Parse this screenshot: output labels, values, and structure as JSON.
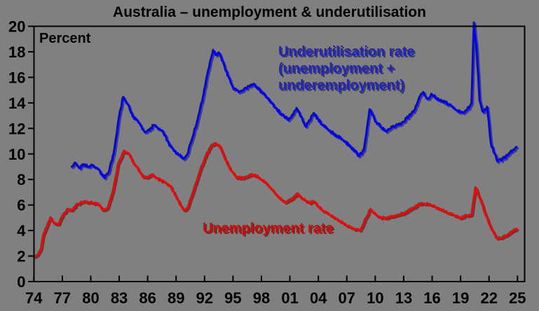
{
  "title": "Australia – unemployment & underutilisation",
  "labels": {
    "percent": "Percent",
    "underutilisation_line1": "Underutilisation rate",
    "underutilisation_line2": "(unemployment +",
    "underutilisation_line3": "underemployment)",
    "unemployment": "Unemployment rate"
  },
  "colors": {
    "background": "#808080",
    "axis": "#000000",
    "unemployment_line": "#FF0000",
    "unemployment_text": "#E60000",
    "underutilisation_line": "#0000FF",
    "underutilisation_text": "#2222CC"
  },
  "chart_data": {
    "type": "line",
    "title": "Australia – unemployment & underutilisation",
    "ylabel": "Percent",
    "xlabel": "",
    "ylim": [
      0,
      20
    ],
    "xlim": [
      1973.4,
      2025.75
    ],
    "grid": false,
    "legend_position": "inline-annotations",
    "y_ticks": [
      0,
      2,
      4,
      6,
      8,
      10,
      12,
      14,
      16,
      18,
      20
    ],
    "x_ticks": [
      {
        "label": "74",
        "year": 1974
      },
      {
        "label": "77",
        "year": 1977
      },
      {
        "label": "80",
        "year": 1980
      },
      {
        "label": "83",
        "year": 1983
      },
      {
        "label": "86",
        "year": 1986
      },
      {
        "label": "89",
        "year": 1989
      },
      {
        "label": "92",
        "year": 1992
      },
      {
        "label": "95",
        "year": 1995
      },
      {
        "label": "98",
        "year": 1998
      },
      {
        "label": "01",
        "year": 2001
      },
      {
        "label": "04",
        "year": 2004
      },
      {
        "label": "07",
        "year": 2007
      },
      {
        "label": "10",
        "year": 2010
      },
      {
        "label": "13",
        "year": 2013
      },
      {
        "label": "16",
        "year": 2016
      },
      {
        "label": "19",
        "year": 2019
      },
      {
        "label": "22",
        "year": 2022
      },
      {
        "label": "25",
        "year": 2025
      }
    ],
    "series": [
      {
        "key": "unemployment",
        "name": "Unemployment rate",
        "color": "#FF0000",
        "label_color": "#E60000",
        "wiggle": 0.07,
        "points": [
          [
            1974.05,
            1.95
          ],
          [
            1974.4,
            2.1
          ],
          [
            1974.7,
            2.5
          ],
          [
            1975.0,
            3.7
          ],
          [
            1975.4,
            4.4
          ],
          [
            1975.75,
            5.05
          ],
          [
            1976.1,
            4.6
          ],
          [
            1976.6,
            4.5
          ],
          [
            1977.1,
            5.3
          ],
          [
            1977.6,
            5.7
          ],
          [
            1978.0,
            5.6
          ],
          [
            1978.6,
            6.1
          ],
          [
            1979.3,
            6.3
          ],
          [
            1980.0,
            6.2
          ],
          [
            1980.8,
            6.1
          ],
          [
            1981.3,
            5.6
          ],
          [
            1981.8,
            5.8
          ],
          [
            1982.3,
            7.0
          ],
          [
            1982.9,
            9.3
          ],
          [
            1983.5,
            10.25
          ],
          [
            1984.0,
            10.0
          ],
          [
            1984.5,
            9.3
          ],
          [
            1985.0,
            8.8
          ],
          [
            1985.5,
            8.2
          ],
          [
            1986.0,
            8.2
          ],
          [
            1986.5,
            8.4
          ],
          [
            1987.0,
            8.1
          ],
          [
            1987.7,
            7.85
          ],
          [
            1988.4,
            7.5
          ],
          [
            1989.1,
            6.45
          ],
          [
            1989.8,
            5.6
          ],
          [
            1990.2,
            5.8
          ],
          [
            1990.9,
            7.3
          ],
          [
            1991.6,
            8.9
          ],
          [
            1992.2,
            10.0
          ],
          [
            1992.8,
            10.75
          ],
          [
            1993.2,
            10.85
          ],
          [
            1993.6,
            10.6
          ],
          [
            1994.1,
            9.7
          ],
          [
            1994.8,
            8.7
          ],
          [
            1995.3,
            8.2
          ],
          [
            1996.1,
            8.1
          ],
          [
            1996.8,
            8.4
          ],
          [
            1997.5,
            8.3
          ],
          [
            1998.3,
            7.85
          ],
          [
            1999.0,
            7.3
          ],
          [
            1999.8,
            6.65
          ],
          [
            2000.5,
            6.2
          ],
          [
            2001.1,
            6.45
          ],
          [
            2001.8,
            6.9
          ],
          [
            2002.2,
            6.55
          ],
          [
            2003.0,
            6.2
          ],
          [
            2003.5,
            6.3
          ],
          [
            2004.4,
            5.6
          ],
          [
            2005.4,
            5.15
          ],
          [
            2006.4,
            4.7
          ],
          [
            2007.4,
            4.25
          ],
          [
            2008.4,
            4.0
          ],
          [
            2009.0,
            5.0
          ],
          [
            2009.5,
            5.7
          ],
          [
            2010.0,
            5.3
          ],
          [
            2010.7,
            5.0
          ],
          [
            2011.3,
            5.05
          ],
          [
            2012.1,
            5.15
          ],
          [
            2013.1,
            5.4
          ],
          [
            2014.0,
            5.8
          ],
          [
            2014.7,
            6.1
          ],
          [
            2015.5,
            6.15
          ],
          [
            2016.5,
            5.8
          ],
          [
            2017.5,
            5.5
          ],
          [
            2018.3,
            5.2
          ],
          [
            2019.0,
            5.0
          ],
          [
            2019.6,
            5.2
          ],
          [
            2020.15,
            5.25
          ],
          [
            2020.55,
            7.4
          ],
          [
            2021.1,
            6.4
          ],
          [
            2021.7,
            5.1
          ],
          [
            2022.2,
            4.2
          ],
          [
            2022.8,
            3.4
          ],
          [
            2023.4,
            3.5
          ],
          [
            2023.9,
            3.65
          ],
          [
            2024.4,
            3.95
          ],
          [
            2024.9,
            4.15
          ]
        ]
      },
      {
        "key": "underutilisation",
        "name": "Underutilisation rate (unemployment + underemployment)",
        "color": "#0000FF",
        "label_color": "#2222CC",
        "wiggle": 0.11,
        "points": [
          [
            1978.0,
            9.0
          ],
          [
            1978.4,
            9.3
          ],
          [
            1978.8,
            8.9
          ],
          [
            1979.3,
            9.2
          ],
          [
            1979.8,
            9.0
          ],
          [
            1980.3,
            9.1
          ],
          [
            1980.8,
            8.8
          ],
          [
            1981.4,
            8.15
          ],
          [
            1981.9,
            8.6
          ],
          [
            1982.4,
            10.0
          ],
          [
            1983.0,
            13.0
          ],
          [
            1983.4,
            14.45
          ],
          [
            1983.9,
            13.9
          ],
          [
            1984.5,
            12.9
          ],
          [
            1985.1,
            12.4
          ],
          [
            1985.7,
            11.7
          ],
          [
            1986.2,
            11.85
          ],
          [
            1986.6,
            12.25
          ],
          [
            1987.0,
            12.1
          ],
          [
            1987.6,
            11.8
          ],
          [
            1988.1,
            11.0
          ],
          [
            1988.6,
            10.45
          ],
          [
            1989.1,
            10.05
          ],
          [
            1989.8,
            9.6
          ],
          [
            1990.2,
            10.0
          ],
          [
            1990.6,
            11.0
          ],
          [
            1991.3,
            12.8
          ],
          [
            1991.9,
            14.7
          ],
          [
            1992.4,
            16.6
          ],
          [
            1992.9,
            18.15
          ],
          [
            1993.2,
            17.75
          ],
          [
            1993.5,
            17.95
          ],
          [
            1994.5,
            16.1
          ],
          [
            1995.1,
            15.05
          ],
          [
            1995.7,
            14.9
          ],
          [
            1996.4,
            15.15
          ],
          [
            1997.2,
            15.5
          ],
          [
            1998.1,
            14.8
          ],
          [
            1998.9,
            14.2
          ],
          [
            1999.5,
            13.6
          ],
          [
            2000.2,
            13.05
          ],
          [
            2000.9,
            12.7
          ],
          [
            2001.7,
            13.6
          ],
          [
            2002.7,
            12.15
          ],
          [
            2003.5,
            13.2
          ],
          [
            2004.4,
            12.3
          ],
          [
            2005.4,
            11.7
          ],
          [
            2006.4,
            11.2
          ],
          [
            2007.4,
            10.6
          ],
          [
            2008.3,
            9.85
          ],
          [
            2008.8,
            10.3
          ],
          [
            2009.4,
            13.5
          ],
          [
            2010.1,
            12.5
          ],
          [
            2011.1,
            11.8
          ],
          [
            2011.8,
            12.1
          ],
          [
            2012.6,
            12.3
          ],
          [
            2013.3,
            12.8
          ],
          [
            2014.05,
            13.3
          ],
          [
            2014.6,
            14.35
          ],
          [
            2015.05,
            14.85
          ],
          [
            2015.5,
            14.35
          ],
          [
            2016.0,
            14.65
          ],
          [
            2016.7,
            14.25
          ],
          [
            2018.0,
            13.8
          ],
          [
            2018.7,
            13.4
          ],
          [
            2019.35,
            13.25
          ],
          [
            2019.95,
            13.7
          ],
          [
            2020.15,
            14.0
          ],
          [
            2020.4,
            20.3
          ],
          [
            2020.7,
            18.0
          ],
          [
            2021.0,
            14.2
          ],
          [
            2021.35,
            13.3
          ],
          [
            2021.8,
            13.7
          ],
          [
            2022.2,
            10.8
          ],
          [
            2022.9,
            9.4
          ],
          [
            2023.4,
            9.6
          ],
          [
            2024.0,
            9.9
          ],
          [
            2024.5,
            10.3
          ],
          [
            2024.9,
            10.55
          ]
        ]
      }
    ]
  }
}
